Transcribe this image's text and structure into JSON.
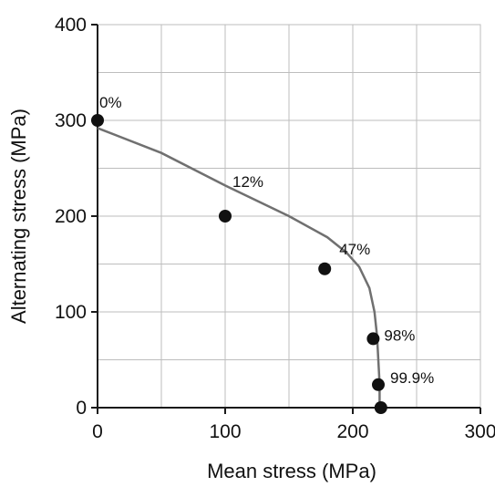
{
  "chart_data": {
    "type": "scatter",
    "xlabel": "Mean stress (MPa)",
    "ylabel": "Alternating stress (MPa)",
    "xlim": [
      0,
      300
    ],
    "ylim": [
      0,
      400
    ],
    "x_ticks": [
      "0",
      "100",
      "200",
      "300"
    ],
    "y_ticks": [
      "0",
      "100",
      "200",
      "300",
      "400"
    ],
    "grid": true,
    "grid_step": {
      "x": 50,
      "y": 50
    },
    "points": [
      {
        "x": 0,
        "y": 300,
        "label": "0%"
      },
      {
        "x": 100,
        "y": 200,
        "label": "12%"
      },
      {
        "x": 178,
        "y": 145,
        "label": "47%"
      },
      {
        "x": 216,
        "y": 72,
        "label": "98%"
      },
      {
        "x": 220,
        "y": 24,
        "label": "99.9%"
      },
      {
        "x": 222,
        "y": 0,
        "label": ""
      }
    ],
    "curve": [
      [
        0,
        292
      ],
      [
        50,
        266
      ],
      [
        100,
        232
      ],
      [
        150,
        200
      ],
      [
        180,
        178
      ],
      [
        195,
        162
      ],
      [
        205,
        147
      ],
      [
        213,
        125
      ],
      [
        217,
        100
      ],
      [
        219,
        75
      ],
      [
        220,
        50
      ],
      [
        221,
        25
      ],
      [
        221,
        0
      ]
    ],
    "colors": {
      "point": "#111111",
      "curve": "#707070",
      "grid": "#bdbdbd",
      "axis": "#1a1a1a"
    }
  }
}
